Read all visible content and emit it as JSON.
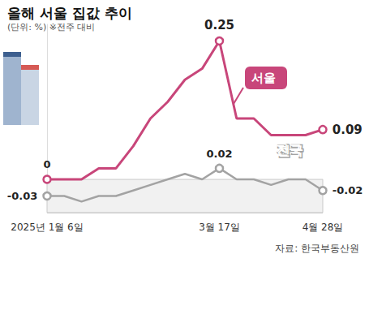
{
  "chart_data": {
    "type": "line",
    "title": "올해 서울 집값 추이",
    "subtitle": "(단위: %) ※전주 대비",
    "source": "자료: 한국부동산원",
    "categories": [
      "2025년 1월 6일",
      null,
      null,
      null,
      null,
      null,
      null,
      null,
      null,
      null,
      "3월 17일",
      null,
      null,
      null,
      null,
      null,
      "4월 28일"
    ],
    "series": [
      {
        "name": "서울",
        "color": "#c8467a",
        "values": [
          0,
          0,
          0,
          0.02,
          0.02,
          0.06,
          0.11,
          0.14,
          0.18,
          0.2,
          0.25,
          0.11,
          0.11,
          0.08,
          0.08,
          0.08,
          0.09
        ],
        "value_labels": [
          "0",
          null,
          null,
          null,
          null,
          null,
          null,
          null,
          null,
          null,
          "0.25",
          null,
          null,
          null,
          null,
          null,
          "0.09"
        ]
      },
      {
        "name": "전국",
        "color": "#a3a3a3",
        "values": [
          -0.03,
          -0.03,
          -0.04,
          -0.03,
          -0.03,
          -0.02,
          -0.01,
          0,
          0.01,
          0,
          0.02,
          0,
          0,
          -0.01,
          0,
          0,
          -0.02
        ],
        "value_labels": [
          "-0.03",
          null,
          null,
          null,
          null,
          null,
          null,
          null,
          null,
          null,
          "0.02",
          null,
          null,
          null,
          null,
          null,
          "-0.02"
        ]
      }
    ],
    "ylim": [
      -0.06,
      0.28
    ],
    "yticks": [
      -0.06,
      0
    ],
    "grid": true,
    "data_labels": true,
    "tick_labels": "x"
  }
}
